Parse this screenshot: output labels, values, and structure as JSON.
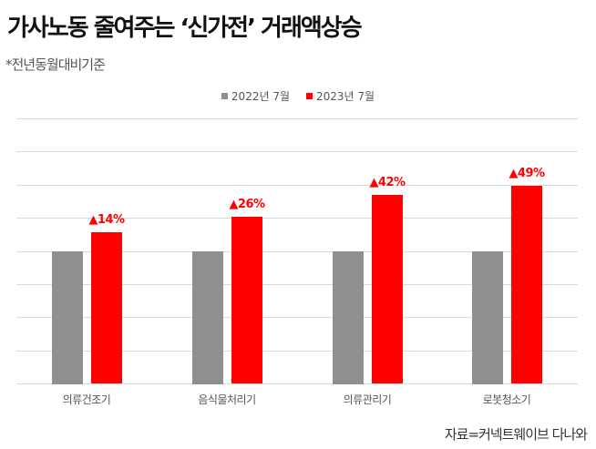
{
  "header": {
    "title": "가사노동 줄여주는 ‘신가전’ 거래액상승",
    "subtitle": "*전년동월대비기준"
  },
  "legend": [
    {
      "label": "2022년 7월",
      "color": "#8f8f8f"
    },
    {
      "label": "2023년 7월",
      "color": "#ff0000"
    }
  ],
  "footer": {
    "source": "자료=커넥트웨이브 다나와"
  },
  "chart_data": {
    "type": "bar",
    "title": "가사노동 줄여주는 ‘신가전’ 거래액상승",
    "subtitle": "*전년동월대비기준",
    "categories": [
      "의류건조기",
      "음식물처리기",
      "의류관리기",
      "로봇청소기"
    ],
    "series": [
      {
        "name": "2022년 7월",
        "color": "#8f8f8f",
        "values": [
          100,
          100,
          100,
          100
        ]
      },
      {
        "name": "2023년 7월",
        "color": "#ff0000",
        "values": [
          114,
          126,
          142,
          149
        ]
      }
    ],
    "annotations": [
      "▲14%",
      "▲26%",
      "▲42%",
      "▲49%"
    ],
    "xlabel": "",
    "ylabel": "",
    "ylim": [
      0,
      200
    ],
    "grid": true,
    "y_axis_visible": false,
    "legend_position": "top",
    "source": "자료=커넥트웨이브 다나와"
  }
}
